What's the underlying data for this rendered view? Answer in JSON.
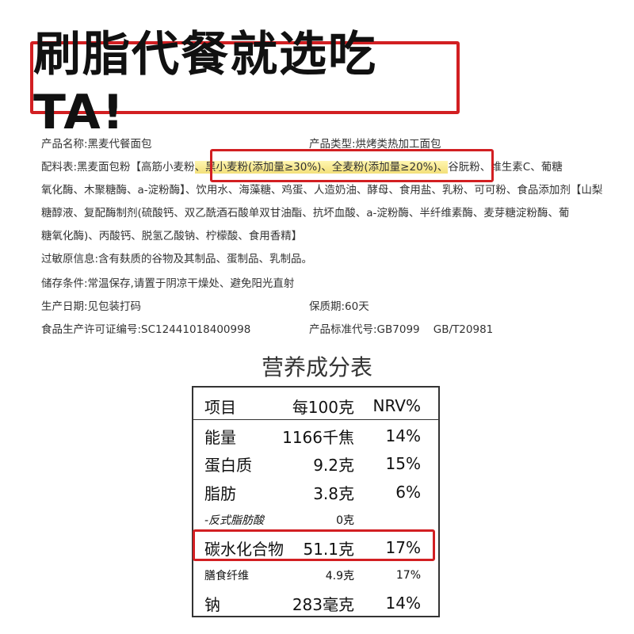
{
  "title": "刷脂代餐就选吃TA!",
  "info": {
    "product_name": "产品名称:黑麦代餐面包",
    "product_type": "产品类型:烘烤类热加工面包",
    "ingredients_1_pre": "配料表:黑麦面包粉【高筋小麦粉",
    "ingredients_1_hl": "、黑小麦粉(添加量≥30%)、全麦粉(添加量≥20%)、",
    "ingredients_1_post": "谷朊粉、维生素C、葡糖",
    "ingredients_2": "氧化酶、木聚糖酶、a-淀粉酶】、饮用水、海藻糖、鸡蛋、人造奶油、酵母、食用盐、乳粉、可可粉、食品添加剂【山梨",
    "ingredients_3": "糖醇液、复配酶制剂(硫酸钙、双乙酰酒石酸单双甘油酯、抗坏血酸、a-淀粉酶、半纤维素酶、麦芽糖淀粉酶、葡",
    "ingredients_4": "糖氧化酶)、丙酸钙、脱氢乙酸钠、柠檬酸、食用香精】",
    "allergen": "过敏原信息:含有麸质的谷物及其制品、蛋制品、乳制品。",
    "storage": "储存条件:常温保存,请置于阴凉干燥处、避免阳光直射",
    "production_date": "生产日期:见包装打码",
    "shelf_life": "保质期:60天",
    "license": "食品生产许可证编号:SC12441018400998",
    "standard": "产品标准代号:GB7099    GB/T20981"
  },
  "nutrition": {
    "title": "营养成分表",
    "header": [
      "项目",
      "每100克",
      "NRV%"
    ],
    "rows": [
      {
        "name": "能量",
        "value": "1166千焦",
        "nrv": "14%"
      },
      {
        "name": "蛋白质",
        "value": "9.2克",
        "nrv": "15%"
      },
      {
        "name": "脂肪",
        "value": "3.8克",
        "nrv": "6%"
      },
      {
        "name": "-反式脂肪酸",
        "value": "0克",
        "nrv": ""
      },
      {
        "name": "碳水化合物",
        "value": "51.1克",
        "nrv": "17%"
      },
      {
        "name": "膳食纤维",
        "value": "4.9克",
        "nrv": "17%"
      },
      {
        "name": "钠",
        "value": "283毫克",
        "nrv": "14%"
      }
    ]
  },
  "colors": {
    "highlight_border": "#d21f22",
    "highlight_fill": "#f3e07a"
  }
}
